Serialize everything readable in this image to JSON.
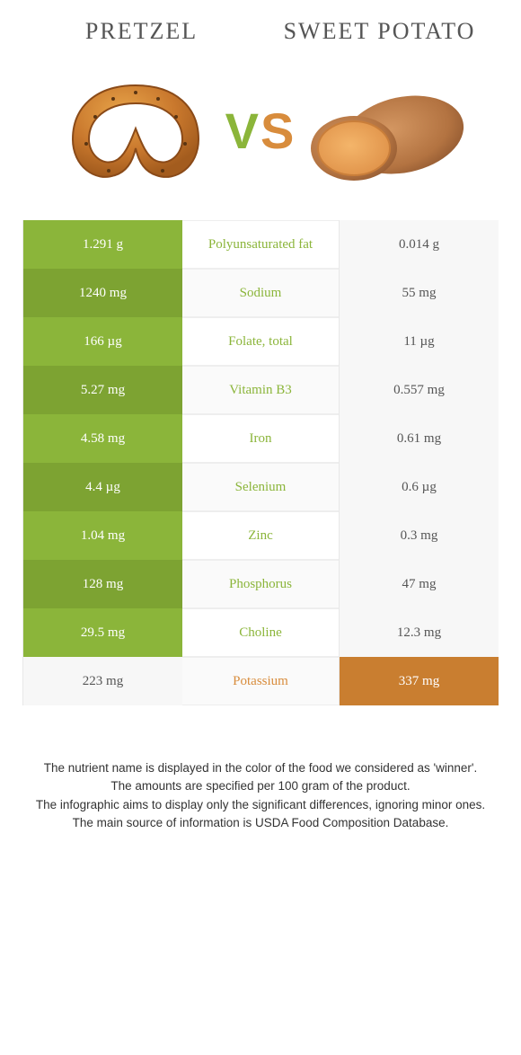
{
  "header": {
    "left": "Pretzel",
    "right": "Sweet potato"
  },
  "vs": {
    "v": "V",
    "s": "S"
  },
  "colors": {
    "green": "#8bb53a",
    "greenDark": "#7da332",
    "orange": "#d88c3c",
    "orangeDark": "#c97e30",
    "textGreen": "#8bb53a",
    "textOrange": "#d88c3c",
    "lowBg": "#f7f7f7",
    "lowText": "#555555"
  },
  "rows": [
    {
      "left": "1.291 g",
      "label": "Polyunsaturated fat",
      "right": "0.014 g",
      "winner": "left"
    },
    {
      "left": "1240 mg",
      "label": "Sodium",
      "right": "55 mg",
      "winner": "left"
    },
    {
      "left": "166 µg",
      "label": "Folate, total",
      "right": "11 µg",
      "winner": "left"
    },
    {
      "left": "5.27 mg",
      "label": "Vitamin B3",
      "right": "0.557 mg",
      "winner": "left"
    },
    {
      "left": "4.58 mg",
      "label": "Iron",
      "right": "0.61 mg",
      "winner": "left"
    },
    {
      "left": "4.4 µg",
      "label": "Selenium",
      "right": "0.6 µg",
      "winner": "left"
    },
    {
      "left": "1.04 mg",
      "label": "Zinc",
      "right": "0.3 mg",
      "winner": "left"
    },
    {
      "left": "128 mg",
      "label": "Phosphorus",
      "right": "47 mg",
      "winner": "left"
    },
    {
      "left": "29.5 mg",
      "label": "Choline",
      "right": "12.3 mg",
      "winner": "left"
    },
    {
      "left": "223 mg",
      "label": "Potassium",
      "right": "337 mg",
      "winner": "right"
    }
  ],
  "footer": [
    "The nutrient name is displayed in the color of the food we considered as 'winner'.",
    "The amounts are specified per 100 gram of the product.",
    "The infographic aims to display only the significant differences, ignoring minor ones.",
    "The main source of information is USDA Food Composition Database."
  ]
}
